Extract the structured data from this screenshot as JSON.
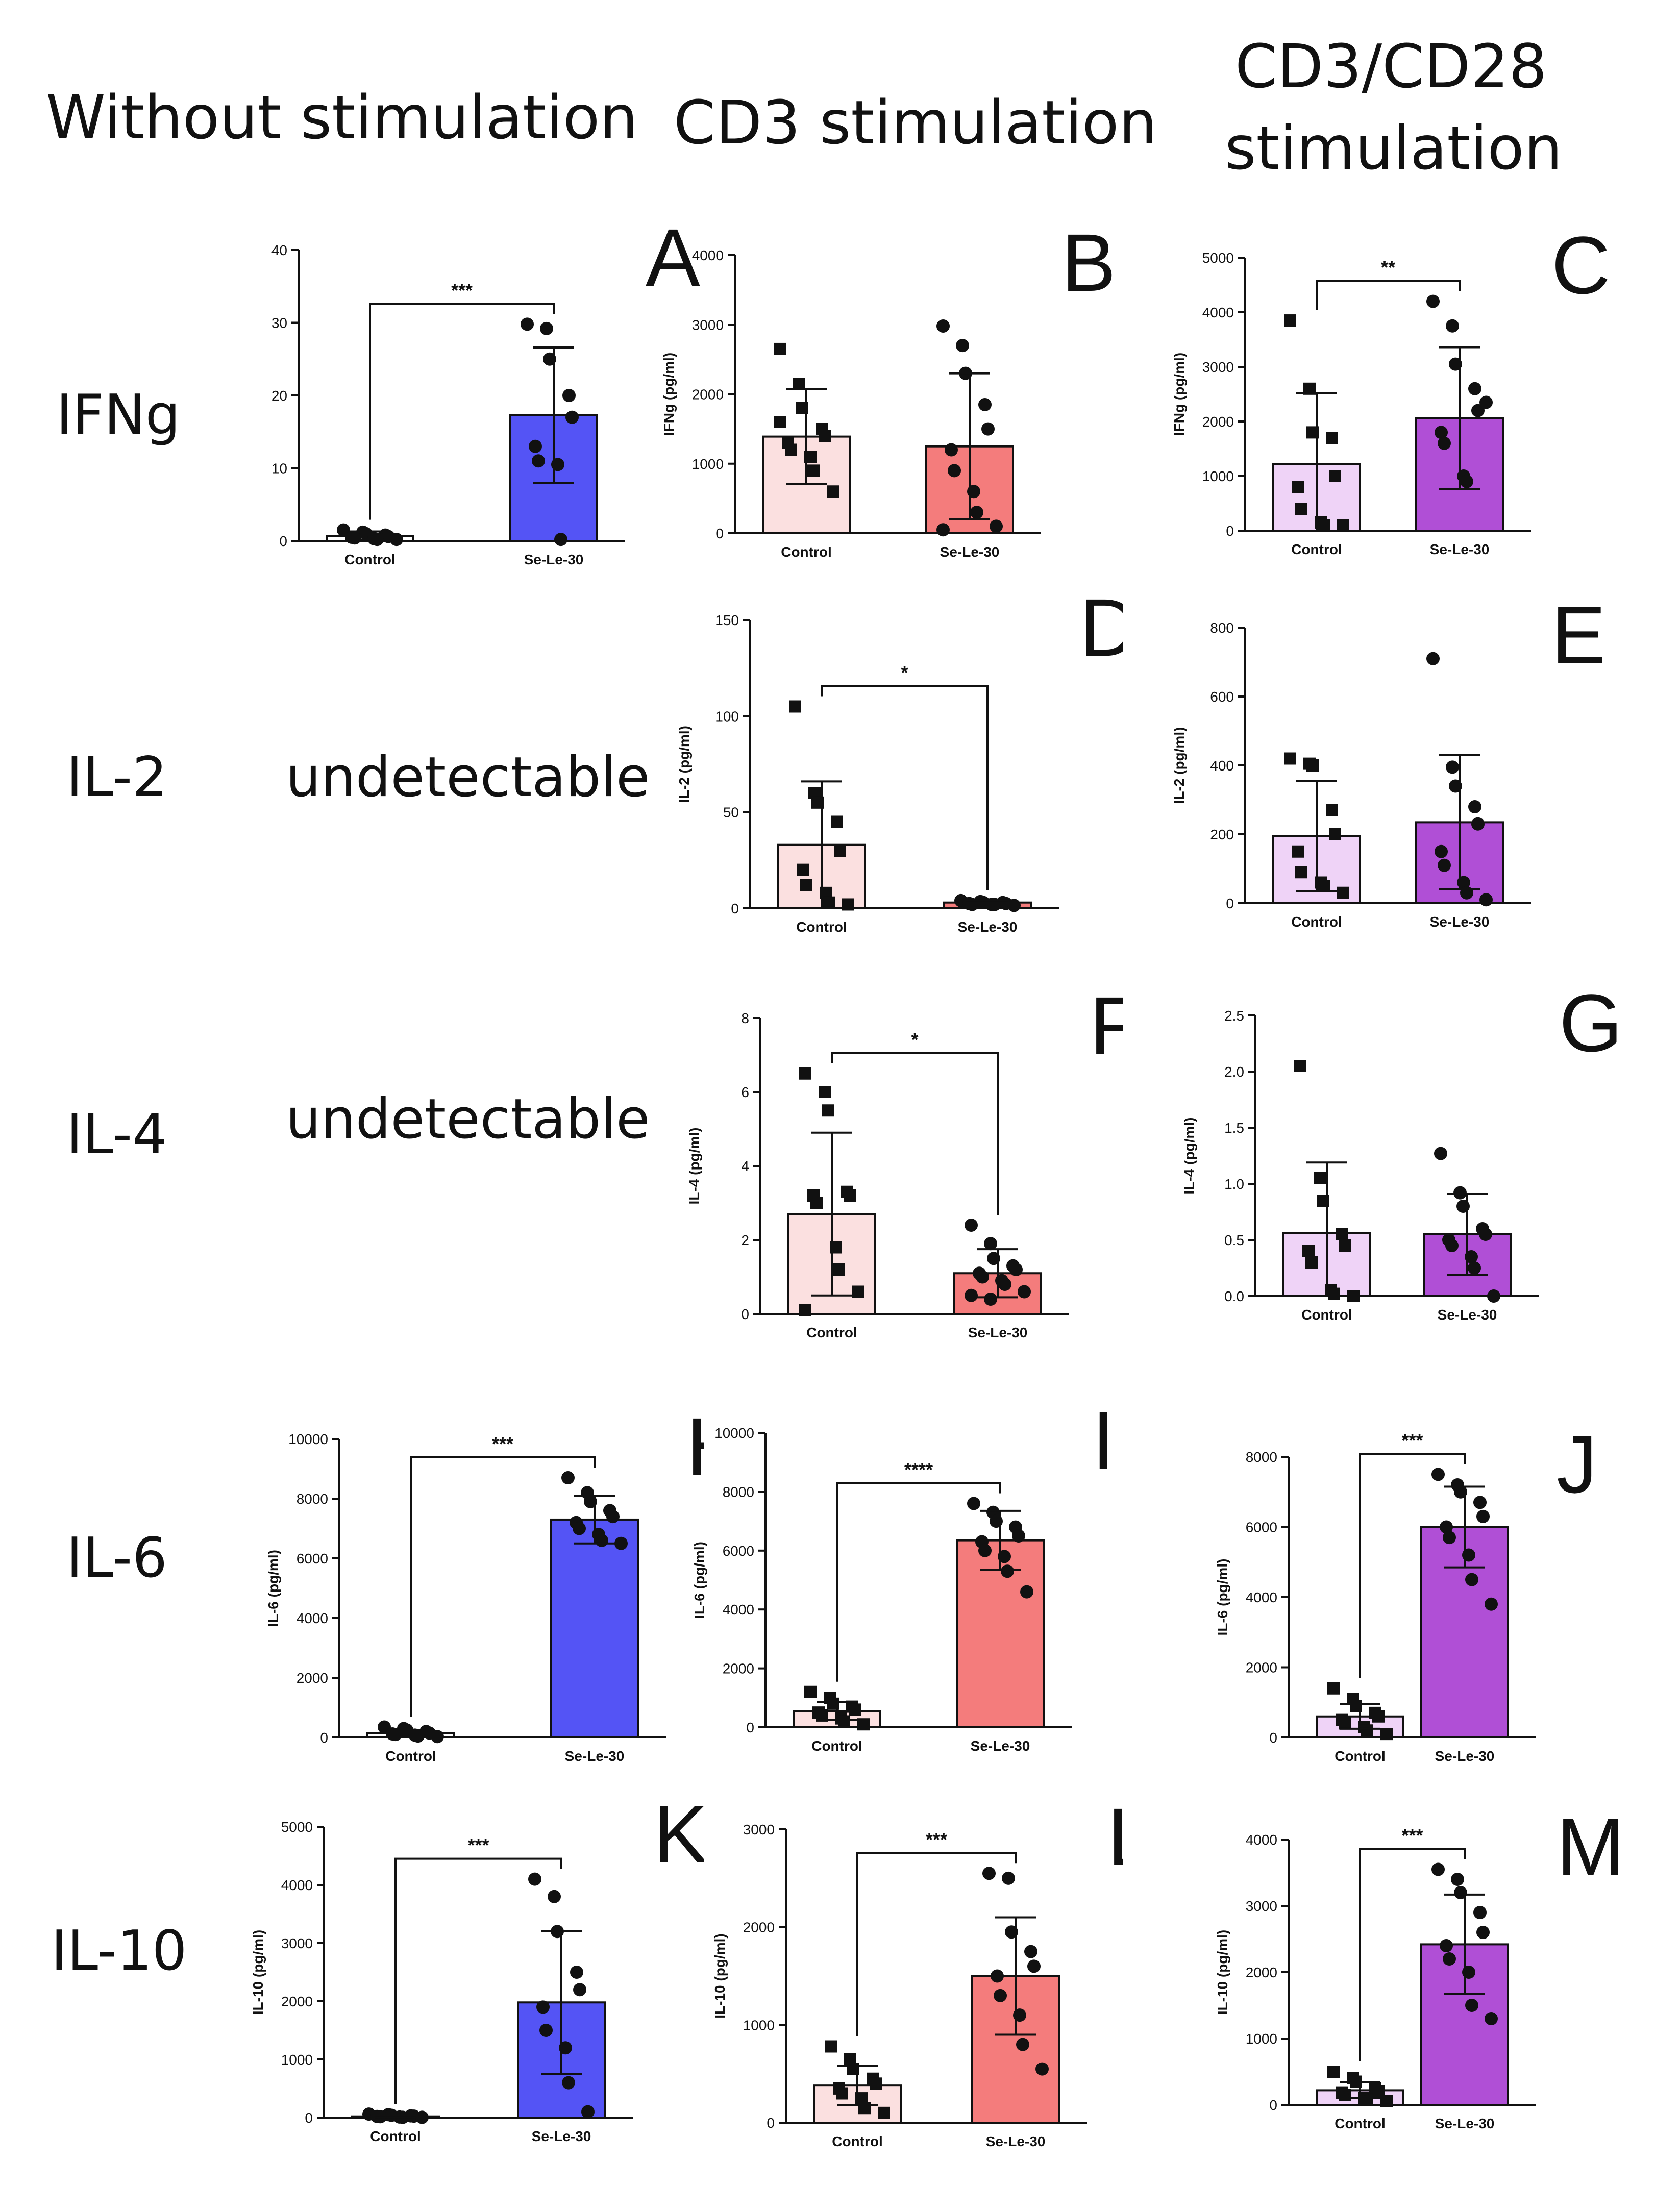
{
  "headers": {
    "col1": "Without stimulation",
    "col2": "CD3 stimulation",
    "col3_line1": "CD3/CD28",
    "col3_line2": "stimulation"
  },
  "rows": {
    "ifng": "IFNg",
    "il2": "IL-2",
    "il4": "IL-4",
    "il6": "IL-6",
    "il10": "IL-10"
  },
  "undetectable": {
    "il2": "undetectable",
    "il4": "undetectable"
  },
  "colors": {
    "blue": "#5454f5",
    "red_bar": "#f47c7c",
    "pink_bar": "#fbe0e0",
    "purple_bar": "#b04fd6",
    "lilac_bar": "#efd3f7"
  },
  "chart_data": [
    {
      "id": "A",
      "type": "bar",
      "letter": "A",
      "ylabel": "IFNg (pg/ml)",
      "ylim": [
        0,
        40
      ],
      "yticks": [
        "0",
        "10",
        "20",
        "30",
        "40"
      ],
      "categories": [
        "Control",
        "Se-Le-30"
      ],
      "series": [
        {
          "name": "Control",
          "mean": 0.7,
          "sd": 0.6,
          "marker": "circle",
          "points": [
            1.5,
            1.2,
            1.0,
            0.8,
            0.6,
            0.5,
            0.4,
            0.3,
            0.2,
            0.2
          ],
          "color": "#ffffff"
        },
        {
          "name": "Se-Le-30",
          "mean": 17.3,
          "sd": 9.3,
          "marker": "circle",
          "points": [
            29.8,
            29.2,
            25.0,
            20.0,
            17.0,
            13.0,
            11.0,
            10.5,
            0.2
          ],
          "color": "#5454f5"
        }
      ],
      "significance": "***"
    },
    {
      "id": "B",
      "type": "bar",
      "letter": "B",
      "ylabel": "IFNg (pg/ml)",
      "ylim": [
        0,
        4000
      ],
      "yticks": [
        "0",
        "1000",
        "2000",
        "3000",
        "4000"
      ],
      "categories": [
        "Control",
        "Se-Le-30"
      ],
      "series": [
        {
          "name": "Control",
          "mean": 1390,
          "sd": 680,
          "marker": "square",
          "points": [
            2650,
            2150,
            1800,
            1500,
            1400,
            1300,
            1200,
            1100,
            900,
            600,
            1600
          ],
          "color": "#fbe0e0"
        },
        {
          "name": "Se-Le-30",
          "mean": 1250,
          "sd": 1050,
          "marker": "circle",
          "points": [
            2980,
            2700,
            2300,
            1850,
            1500,
            1200,
            900,
            600,
            300,
            100,
            50
          ],
          "color": "#f47c7c"
        }
      ],
      "significance": ""
    },
    {
      "id": "C",
      "type": "bar",
      "letter": "C",
      "ylabel": "IFNg (pg/ml)",
      "ylim": [
        0,
        5000
      ],
      "yticks": [
        "0",
        "1000",
        "2000",
        "3000",
        "4000",
        "5000"
      ],
      "categories": [
        "Control",
        "Se-Le-30"
      ],
      "series": [
        {
          "name": "Control",
          "mean": 1220,
          "sd": 1300,
          "marker": "square",
          "points": [
            3850,
            2600,
            1800,
            1700,
            1000,
            800,
            400,
            150,
            100,
            100
          ],
          "color": "#efd3f7"
        },
        {
          "name": "Se-Le-30",
          "mean": 2060,
          "sd": 1300,
          "marker": "circle",
          "points": [
            4200,
            3750,
            3050,
            2600,
            2200,
            1800,
            1600,
            1000,
            900,
            2350
          ],
          "color": "#b04fd6"
        }
      ],
      "significance": "**"
    },
    {
      "id": "D",
      "type": "bar",
      "letter": "D",
      "ylabel": "IL-2 (pg/ml)",
      "ylim": [
        0,
        150
      ],
      "yticks": [
        "0",
        "50",
        "100",
        "150"
      ],
      "categories": [
        "Control",
        "Se-Le-30"
      ],
      "series": [
        {
          "name": "Control",
          "mean": 33,
          "sd": 33,
          "marker": "square",
          "points": [
            105,
            60,
            55,
            45,
            30,
            20,
            12,
            8,
            3,
            2
          ],
          "color": "#fbe0e0"
        },
        {
          "name": "Se-Le-30",
          "mean": 3,
          "sd": 1,
          "marker": "circle",
          "points": [
            4,
            3.5,
            3,
            3,
            2.5,
            2.5,
            2,
            2,
            2,
            1.5
          ],
          "color": "#f47c7c"
        }
      ],
      "significance": "*"
    },
    {
      "id": "E",
      "type": "bar",
      "letter": "E",
      "ylabel": "IL-2 (pg/ml)",
      "ylim": [
        0,
        800
      ],
      "yticks": [
        "0",
        "200",
        "400",
        "600",
        "800"
      ],
      "categories": [
        "Control",
        "Se-Le-30"
      ],
      "series": [
        {
          "name": "Control",
          "mean": 195,
          "sd": 160,
          "marker": "square",
          "points": [
            420,
            405,
            400,
            270,
            200,
            150,
            90,
            60,
            50,
            30
          ],
          "color": "#efd3f7"
        },
        {
          "name": "Se-Le-30",
          "mean": 235,
          "sd": 195,
          "marker": "circle",
          "points": [
            710,
            395,
            340,
            280,
            230,
            150,
            110,
            60,
            30,
            10
          ],
          "color": "#b04fd6"
        }
      ],
      "significance": ""
    },
    {
      "id": "F",
      "type": "bar",
      "letter": "F",
      "ylabel": "IL-4 (pg/ml)",
      "ylim": [
        0,
        8
      ],
      "yticks": [
        "0",
        "2",
        "4",
        "6",
        "8"
      ],
      "categories": [
        "Control",
        "Se-Le-30"
      ],
      "series": [
        {
          "name": "Control",
          "mean": 2.7,
          "sd": 2.2,
          "marker": "square",
          "points": [
            6.5,
            6.0,
            5.5,
            3.3,
            3.2,
            3.2,
            3.0,
            1.8,
            1.2,
            0.6,
            0.1
          ],
          "color": "#fbe0e0"
        },
        {
          "name": "Se-Le-30",
          "mean": 1.1,
          "sd": 0.65,
          "marker": "circle",
          "points": [
            2.4,
            1.9,
            1.5,
            1.3,
            1.2,
            1.1,
            1.0,
            0.9,
            0.8,
            0.6,
            0.5,
            0.4
          ],
          "color": "#f47c7c"
        }
      ],
      "significance": "*"
    },
    {
      "id": "G",
      "type": "bar",
      "letter": "G",
      "ylabel": "IL-4 (pg/ml)",
      "ylim": [
        0,
        2.5
      ],
      "yticks": [
        "0.0",
        "0.5",
        "1.0",
        "1.5",
        "2.0",
        "2.5"
      ],
      "categories": [
        "Control",
        "Se-Le-30"
      ],
      "series": [
        {
          "name": "Control",
          "mean": 0.56,
          "sd": 0.63,
          "marker": "square",
          "points": [
            2.05,
            1.05,
            0.85,
            0.55,
            0.45,
            0.4,
            0.3,
            0.05,
            0.02,
            0.0
          ],
          "color": "#efd3f7"
        },
        {
          "name": "Se-Le-30",
          "mean": 0.55,
          "sd": 0.36,
          "marker": "circle",
          "points": [
            1.27,
            0.92,
            0.8,
            0.6,
            0.55,
            0.5,
            0.45,
            0.35,
            0.25,
            0.0
          ],
          "color": "#b04fd6"
        }
      ],
      "significance": ""
    },
    {
      "id": "H",
      "type": "bar",
      "letter": "H",
      "ylabel": "IL-6 (pg/ml)",
      "ylim": [
        0,
        10000
      ],
      "yticks": [
        "0",
        "2000",
        "4000",
        "6000",
        "8000",
        "10000"
      ],
      "categories": [
        "Control",
        "Se-Le-30"
      ],
      "series": [
        {
          "name": "Control",
          "mean": 150,
          "sd": 100,
          "marker": "circle",
          "points": [
            350,
            300,
            250,
            200,
            150,
            120,
            100,
            80,
            50,
            30
          ],
          "color": "#ffffff"
        },
        {
          "name": "Se-Le-30",
          "mean": 7300,
          "sd": 800,
          "marker": "circle",
          "points": [
            8700,
            8200,
            7900,
            7600,
            7400,
            7200,
            7000,
            6800,
            6600,
            6500
          ],
          "color": "#5454f5"
        }
      ],
      "significance": "***"
    },
    {
      "id": "I",
      "type": "bar",
      "letter": "I",
      "ylabel": "IL-6 (pg/ml)",
      "ylim": [
        0,
        10000
      ],
      "yticks": [
        "0",
        "2000",
        "4000",
        "6000",
        "8000",
        "10000"
      ],
      "categories": [
        "Control",
        "Se-Le-30"
      ],
      "series": [
        {
          "name": "Control",
          "mean": 550,
          "sd": 300,
          "marker": "square",
          "points": [
            1200,
            1000,
            800,
            700,
            600,
            500,
            400,
            300,
            200,
            100
          ],
          "color": "#fbe0e0"
        },
        {
          "name": "Se-Le-30",
          "mean": 6350,
          "sd": 1000,
          "marker": "circle",
          "points": [
            7600,
            7300,
            7000,
            6800,
            6500,
            6300,
            6000,
            5800,
            5300,
            4600
          ],
          "color": "#f47c7c"
        }
      ],
      "significance": "****"
    },
    {
      "id": "J",
      "type": "bar",
      "letter": "J",
      "ylabel": "IL-6 (pg/ml)",
      "ylim": [
        0,
        8000
      ],
      "yticks": [
        "0",
        "2000",
        "4000",
        "6000",
        "8000"
      ],
      "categories": [
        "Control",
        "Se-Le-30"
      ],
      "series": [
        {
          "name": "Control",
          "mean": 600,
          "sd": 350,
          "marker": "square",
          "points": [
            1400,
            1100,
            900,
            700,
            600,
            500,
            400,
            300,
            200,
            100
          ],
          "color": "#efd3f7"
        },
        {
          "name": "Se-Le-30",
          "mean": 6000,
          "sd": 1150,
          "marker": "circle",
          "points": [
            7500,
            7200,
            7000,
            6700,
            6300,
            6000,
            5700,
            5200,
            4500,
            3800
          ],
          "color": "#b04fd6"
        }
      ],
      "significance": "***"
    },
    {
      "id": "K",
      "type": "bar",
      "letter": "K",
      "ylabel": "IL-10 (pg/ml)",
      "ylim": [
        0,
        5000
      ],
      "yticks": [
        "0",
        "1000",
        "2000",
        "3000",
        "4000",
        "5000"
      ],
      "categories": [
        "Control",
        "Se-Le-30"
      ],
      "series": [
        {
          "name": "Control",
          "mean": 20,
          "sd": 15,
          "marker": "circle",
          "points": [
            60,
            50,
            40,
            30,
            25,
            20,
            15,
            10,
            5,
            5
          ],
          "color": "#ffffff"
        },
        {
          "name": "Se-Le-30",
          "mean": 1980,
          "sd": 1230,
          "marker": "circle",
          "points": [
            4100,
            3800,
            3200,
            2500,
            2200,
            1900,
            1500,
            1200,
            600,
            100
          ],
          "color": "#5454f5"
        }
      ],
      "significance": "***"
    },
    {
      "id": "L",
      "type": "bar",
      "letter": "L",
      "ylabel": "IL-10 (pg/ml)",
      "ylim": [
        0,
        3000
      ],
      "yticks": [
        "0",
        "1000",
        "2000",
        "3000"
      ],
      "categories": [
        "Control",
        "Se-Le-30"
      ],
      "series": [
        {
          "name": "Control",
          "mean": 380,
          "sd": 200,
          "marker": "square",
          "points": [
            780,
            650,
            550,
            450,
            400,
            350,
            300,
            250,
            150,
            100
          ],
          "color": "#fbe0e0"
        },
        {
          "name": "Se-Le-30",
          "mean": 1500,
          "sd": 600,
          "marker": "circle",
          "points": [
            2550,
            2500,
            1950,
            1750,
            1600,
            1500,
            1300,
            1100,
            800,
            550
          ],
          "color": "#f47c7c"
        }
      ],
      "significance": "***"
    },
    {
      "id": "M",
      "type": "bar",
      "letter": "M",
      "ylabel": "IL-10 (pg/ml)",
      "ylim": [
        0,
        4000
      ],
      "yticks": [
        "0",
        "1000",
        "2000",
        "3000",
        "4000"
      ],
      "categories": [
        "Control",
        "Se-Le-30"
      ],
      "series": [
        {
          "name": "Control",
          "mean": 220,
          "sd": 120,
          "marker": "square",
          "points": [
            500,
            400,
            350,
            250,
            200,
            180,
            150,
            100,
            80,
            60
          ],
          "color": "#efd3f7"
        },
        {
          "name": "Se-Le-30",
          "mean": 2420,
          "sd": 750,
          "marker": "circle",
          "points": [
            3550,
            3400,
            3200,
            2900,
            2600,
            2400,
            2200,
            2000,
            1500,
            1300
          ],
          "color": "#b04fd6"
        }
      ],
      "significance": "***"
    }
  ]
}
